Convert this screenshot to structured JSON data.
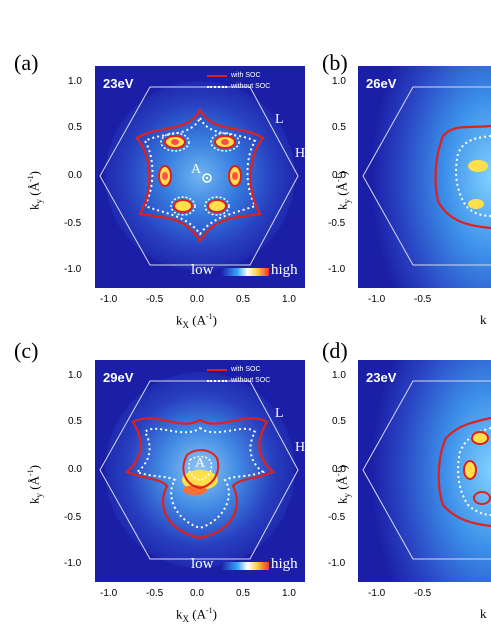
{
  "panels": [
    {
      "label": "(a)",
      "energy": "23eV",
      "legend": true,
      "xlabel_visible": true
    },
    {
      "label": "(b)",
      "energy": "26eV",
      "legend": false,
      "xlabel_visible": false
    },
    {
      "label": "(c)",
      "energy": "29eV",
      "legend": true,
      "xlabel_visible": true
    },
    {
      "label": "(d)",
      "energy": "23eV",
      "legend": false,
      "xlabel_visible": false
    }
  ],
  "legend": {
    "with_soc": "with SOC",
    "without_soc": "without SOC"
  },
  "axes": {
    "ylabel": "k",
    "ylabel_sub": "y",
    "ylabel_unit": "(Å",
    "ylabel_unit_exp": "-1",
    "ylabel_close": ")",
    "xlabel": "k",
    "xlabel_sub": "X",
    "xlabel_unit": "(A",
    "xlabel_unit_exp": "-1",
    "xlabel_close": ")",
    "yticks": [
      "1.0",
      "0.5",
      "0.0",
      "-0.5",
      "-1.0"
    ],
    "xticks": [
      "-1.0",
      "-0.5",
      "0.0",
      "0.5",
      "1.0"
    ]
  },
  "points": {
    "L": "L",
    "H": "H",
    "A": "A"
  },
  "colorbar": {
    "low": "low",
    "high": "high"
  },
  "colors": {
    "map_bg": "#1b1fa8",
    "with_soc": "#e0201c",
    "without_soc": "#ffffff",
    "hexagon": "#d8d8e8"
  }
}
